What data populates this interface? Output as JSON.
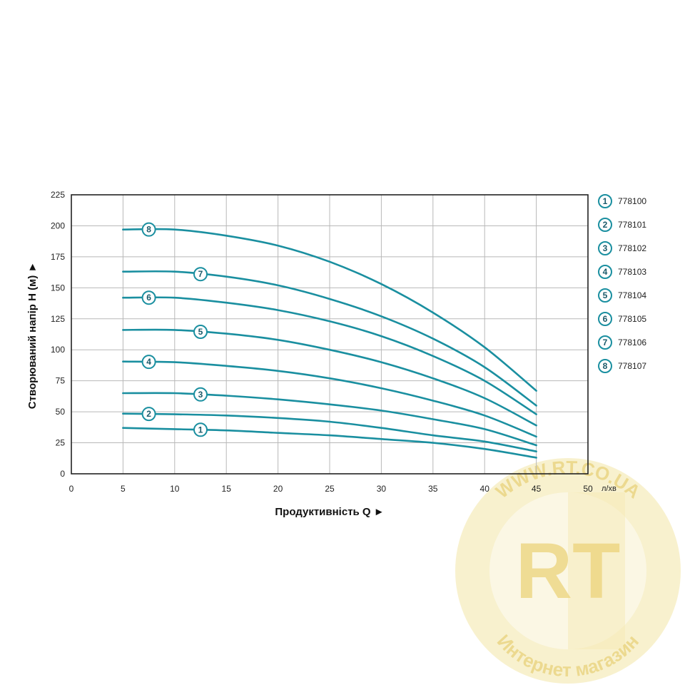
{
  "chart_data": {
    "type": "line",
    "xlabel": "Продуктивність  Q ►",
    "ylabel": "Створюваний напір H (м) ►",
    "x_unit": "л/хв",
    "xlim": [
      0,
      50
    ],
    "ylim": [
      0,
      225
    ],
    "x_ticks": [
      0,
      5,
      10,
      15,
      20,
      25,
      30,
      35,
      40,
      45,
      50
    ],
    "y_ticks": [
      0,
      25,
      50,
      75,
      100,
      125,
      150,
      175,
      200,
      225
    ],
    "grid": true,
    "legend_position": "right",
    "line_color": "#1a8fa0",
    "series": [
      {
        "id": "1",
        "name": "778100",
        "x": [
          5,
          10,
          15,
          20,
          25,
          30,
          35,
          40,
          45
        ],
        "y": [
          37,
          36,
          35,
          33,
          31,
          28,
          25,
          20,
          13
        ],
        "badge_x": 12.5
      },
      {
        "id": "2",
        "name": "778101",
        "x": [
          5,
          10,
          15,
          20,
          25,
          30,
          35,
          40,
          45
        ],
        "y": [
          48.5,
          48,
          47,
          45,
          42,
          37,
          31,
          26,
          18
        ],
        "badge_x": 7.5
      },
      {
        "id": "3",
        "name": "778102",
        "x": [
          5,
          10,
          15,
          20,
          25,
          30,
          35,
          40,
          45
        ],
        "y": [
          65,
          65,
          63,
          60,
          56,
          51,
          44,
          36,
          23
        ],
        "badge_x": 12.5
      },
      {
        "id": "4",
        "name": "778103",
        "x": [
          5,
          10,
          15,
          20,
          25,
          30,
          35,
          40,
          45
        ],
        "y": [
          90.5,
          90,
          87,
          83,
          77,
          69,
          59,
          47,
          30
        ],
        "badge_x": 7.5
      },
      {
        "id": "5",
        "name": "778104",
        "x": [
          5,
          10,
          15,
          20,
          25,
          30,
          35,
          40,
          45
        ],
        "y": [
          116,
          116,
          113,
          108,
          100,
          90,
          77,
          61,
          39
        ],
        "badge_x": 12.5
      },
      {
        "id": "6",
        "name": "778105",
        "x": [
          5,
          10,
          15,
          20,
          25,
          30,
          35,
          40,
          45
        ],
        "y": [
          142,
          142,
          138,
          132,
          123,
          111,
          95,
          75,
          48
        ],
        "badge_x": 7.5
      },
      {
        "id": "7",
        "name": "778106",
        "x": [
          5,
          10,
          15,
          20,
          25,
          30,
          35,
          40,
          45
        ],
        "y": [
          163,
          163,
          159,
          152,
          141,
          127,
          109,
          86,
          55
        ],
        "badge_x": 12.5
      },
      {
        "id": "8",
        "name": "778107",
        "x": [
          5,
          10,
          15,
          20,
          25,
          30,
          35,
          40,
          45
        ],
        "y": [
          197,
          197,
          192,
          184,
          171,
          153,
          130,
          102,
          67
        ],
        "badge_x": 7.5
      }
    ]
  },
  "watermark": {
    "top_text": "WWW.RT.CO.UA",
    "logo_text": "RT",
    "bottom_text": "Интернет магазин"
  }
}
